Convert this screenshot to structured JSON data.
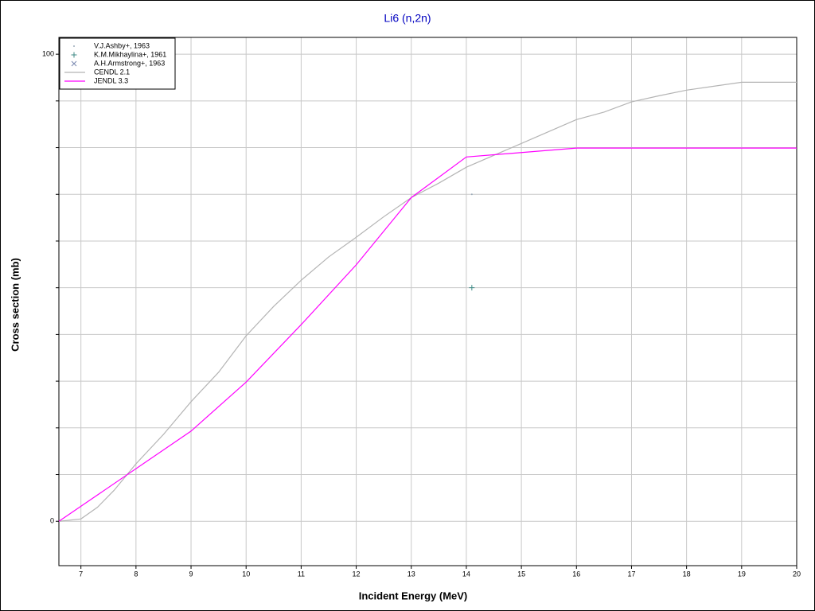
{
  "chart_data": {
    "type": "line",
    "title": "Li6 (n,2n)",
    "x_label": "Incident Energy (MeV)",
    "y_label": "Cross section (mb)",
    "xlim": [
      6.6,
      20
    ],
    "xticks": [
      7,
      8,
      9,
      10,
      11,
      12,
      13,
      14,
      15,
      16,
      17,
      18,
      19,
      20
    ],
    "ylim": [
      -9.5,
      103.6
    ],
    "yticks": [
      0,
      {
        "value": 10,
        "label": null
      },
      {
        "value": 20,
        "label": null
      },
      {
        "value": 30,
        "label": null
      },
      {
        "value": 40,
        "label": null
      },
      {
        "value": 50,
        "label": null
      },
      {
        "value": 60,
        "label": null
      },
      {
        "value": 70,
        "label": null
      },
      {
        "value": 80,
        "label": null
      },
      {
        "value": 90,
        "label": null
      },
      100
    ],
    "grid": true,
    "legend": "top-left",
    "series": [
      {
        "name": "V.J.Ashby+, 1963",
        "color": "#9aaab8",
        "marker": "dot",
        "x": [
          14.1
        ],
        "values": [
          70
        ]
      },
      {
        "name": "K.M.Mikhaylina+, 1961",
        "color": "#3f8a86",
        "marker": "plus",
        "x": [
          14.1
        ],
        "values": [
          50
        ]
      },
      {
        "name": "A.H.Armstrong+, 1963",
        "color": "#7a88b0",
        "marker": "cross",
        "x": [],
        "values": []
      },
      {
        "name": "CENDL 2.1",
        "color": "#b4b4b4",
        "marker": "line",
        "x": [
          6.6,
          7,
          7.3,
          7.6,
          8,
          8.5,
          9,
          9.5,
          10,
          10.5,
          11,
          11.5,
          12,
          12.5,
          13,
          13.5,
          14,
          15,
          16,
          16.5,
          17,
          17.5,
          18,
          19,
          20
        ],
        "values": [
          0,
          0.5,
          3,
          6.6,
          12.3,
          18.6,
          25.6,
          31.9,
          39.7,
          46,
          51.6,
          56.6,
          60.8,
          65.2,
          69.3,
          72.4,
          75.8,
          80.9,
          86,
          87.6,
          89.8,
          91.1,
          92.3,
          94,
          94
        ]
      },
      {
        "name": "JENDL 3.3",
        "color": "#ff00ff",
        "marker": "line",
        "x": [
          6.6,
          9,
          10,
          11,
          12,
          13,
          14,
          16,
          20
        ],
        "values": [
          0,
          19.3,
          29.8,
          42.1,
          54.9,
          69.3,
          78,
          79.9,
          79.9
        ]
      }
    ]
  }
}
